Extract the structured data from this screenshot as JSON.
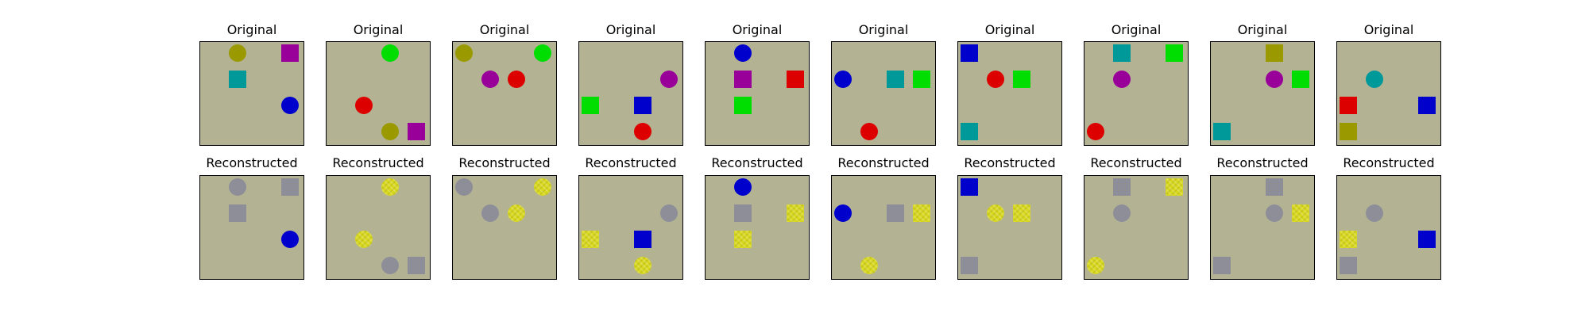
{
  "figure": {
    "row_titles": [
      "Original",
      "Reconstructed"
    ],
    "background": "#b3b394",
    "colors": {
      "olive": "#9a9a00",
      "magenta": "#990099",
      "teal": "#009999",
      "blue": "#0000cc",
      "green": "#00dd00",
      "red": "#dd0000",
      "gray": "#8e8e99",
      "yellow": "#d8d820"
    },
    "columns": [
      {
        "original": [
          {
            "shape": "circle",
            "color": "olive",
            "row": 0,
            "col": 1
          },
          {
            "shape": "square",
            "color": "magenta",
            "row": 0,
            "col": 3
          },
          {
            "shape": "square",
            "color": "teal",
            "row": 1,
            "col": 1
          },
          {
            "shape": "circle",
            "color": "blue",
            "row": 2,
            "col": 3
          }
        ],
        "reconstructed": [
          {
            "shape": "circle",
            "color": "gray",
            "row": 0,
            "col": 1
          },
          {
            "shape": "square",
            "color": "gray",
            "row": 0,
            "col": 3
          },
          {
            "shape": "square",
            "color": "gray",
            "row": 1,
            "col": 1
          },
          {
            "shape": "circle",
            "color": "blue",
            "row": 2,
            "col": 3
          }
        ]
      },
      {
        "original": [
          {
            "shape": "circle",
            "color": "green",
            "row": 0,
            "col": 2
          },
          {
            "shape": "circle",
            "color": "red",
            "row": 2,
            "col": 1
          },
          {
            "shape": "circle",
            "color": "olive",
            "row": 3,
            "col": 2
          },
          {
            "shape": "square",
            "color": "magenta",
            "row": 3,
            "col": 3
          }
        ],
        "reconstructed": [
          {
            "shape": "circle",
            "color": "yellow",
            "row": 0,
            "col": 2
          },
          {
            "shape": "circle",
            "color": "yellow",
            "row": 2,
            "col": 1
          },
          {
            "shape": "circle",
            "color": "gray",
            "row": 3,
            "col": 2
          },
          {
            "shape": "square",
            "color": "gray",
            "row": 3,
            "col": 3
          }
        ]
      },
      {
        "original": [
          {
            "shape": "circle",
            "color": "olive",
            "row": 0,
            "col": 0
          },
          {
            "shape": "circle",
            "color": "green",
            "row": 0,
            "col": 3
          },
          {
            "shape": "circle",
            "color": "magenta",
            "row": 1,
            "col": 1
          },
          {
            "shape": "circle",
            "color": "red",
            "row": 1,
            "col": 2
          }
        ],
        "reconstructed": [
          {
            "shape": "circle",
            "color": "gray",
            "row": 0,
            "col": 0
          },
          {
            "shape": "circle",
            "color": "yellow",
            "row": 0,
            "col": 3
          },
          {
            "shape": "circle",
            "color": "gray",
            "row": 1,
            "col": 1
          },
          {
            "shape": "circle",
            "color": "yellow",
            "row": 1,
            "col": 2
          }
        ]
      },
      {
        "original": [
          {
            "shape": "circle",
            "color": "magenta",
            "row": 1,
            "col": 3
          },
          {
            "shape": "square",
            "color": "green",
            "row": 2,
            "col": 0
          },
          {
            "shape": "square",
            "color": "blue",
            "row": 2,
            "col": 2
          },
          {
            "shape": "circle",
            "color": "red",
            "row": 3,
            "col": 2
          }
        ],
        "reconstructed": [
          {
            "shape": "circle",
            "color": "gray",
            "row": 1,
            "col": 3
          },
          {
            "shape": "square",
            "color": "yellow",
            "row": 2,
            "col": 0
          },
          {
            "shape": "square",
            "color": "blue",
            "row": 2,
            "col": 2
          },
          {
            "shape": "circle",
            "color": "yellow",
            "row": 3,
            "col": 2
          }
        ]
      },
      {
        "original": [
          {
            "shape": "circle",
            "color": "blue",
            "row": 0,
            "col": 1
          },
          {
            "shape": "square",
            "color": "magenta",
            "row": 1,
            "col": 1
          },
          {
            "shape": "square",
            "color": "red",
            "row": 1,
            "col": 3
          },
          {
            "shape": "square",
            "color": "green",
            "row": 2,
            "col": 1
          }
        ],
        "reconstructed": [
          {
            "shape": "circle",
            "color": "blue",
            "row": 0,
            "col": 1
          },
          {
            "shape": "square",
            "color": "gray",
            "row": 1,
            "col": 1
          },
          {
            "shape": "square",
            "color": "yellow",
            "row": 1,
            "col": 3
          },
          {
            "shape": "square",
            "color": "yellow",
            "row": 2,
            "col": 1
          }
        ]
      },
      {
        "original": [
          {
            "shape": "circle",
            "color": "blue",
            "row": 1,
            "col": 0
          },
          {
            "shape": "square",
            "color": "teal",
            "row": 1,
            "col": 2
          },
          {
            "shape": "square",
            "color": "green",
            "row": 1,
            "col": 3
          },
          {
            "shape": "circle",
            "color": "red",
            "row": 3,
            "col": 1
          }
        ],
        "reconstructed": [
          {
            "shape": "circle",
            "color": "blue",
            "row": 1,
            "col": 0
          },
          {
            "shape": "square",
            "color": "gray",
            "row": 1,
            "col": 2
          },
          {
            "shape": "square",
            "color": "yellow",
            "row": 1,
            "col": 3
          },
          {
            "shape": "circle",
            "color": "yellow",
            "row": 3,
            "col": 1
          }
        ]
      },
      {
        "original": [
          {
            "shape": "square",
            "color": "blue",
            "row": 0,
            "col": 0
          },
          {
            "shape": "circle",
            "color": "red",
            "row": 1,
            "col": 1
          },
          {
            "shape": "square",
            "color": "green",
            "row": 1,
            "col": 2
          },
          {
            "shape": "square",
            "color": "teal",
            "row": 3,
            "col": 0
          }
        ],
        "reconstructed": [
          {
            "shape": "square",
            "color": "blue",
            "row": 0,
            "col": 0
          },
          {
            "shape": "circle",
            "color": "yellow",
            "row": 1,
            "col": 1
          },
          {
            "shape": "square",
            "color": "yellow",
            "row": 1,
            "col": 2
          },
          {
            "shape": "square",
            "color": "gray",
            "row": 3,
            "col": 0
          }
        ]
      },
      {
        "original": [
          {
            "shape": "square",
            "color": "teal",
            "row": 0,
            "col": 1
          },
          {
            "shape": "square",
            "color": "green",
            "row": 0,
            "col": 3
          },
          {
            "shape": "circle",
            "color": "magenta",
            "row": 1,
            "col": 1
          },
          {
            "shape": "circle",
            "color": "red",
            "row": 3,
            "col": 0
          }
        ],
        "reconstructed": [
          {
            "shape": "square",
            "color": "gray",
            "row": 0,
            "col": 1
          },
          {
            "shape": "square",
            "color": "yellow",
            "row": 0,
            "col": 3
          },
          {
            "shape": "circle",
            "color": "gray",
            "row": 1,
            "col": 1
          },
          {
            "shape": "circle",
            "color": "yellow",
            "row": 3,
            "col": 0
          }
        ]
      },
      {
        "original": [
          {
            "shape": "square",
            "color": "olive",
            "row": 0,
            "col": 2
          },
          {
            "shape": "circle",
            "color": "magenta",
            "row": 1,
            "col": 2
          },
          {
            "shape": "square",
            "color": "green",
            "row": 1,
            "col": 3
          },
          {
            "shape": "square",
            "color": "teal",
            "row": 3,
            "col": 0
          }
        ],
        "reconstructed": [
          {
            "shape": "square",
            "color": "gray",
            "row": 0,
            "col": 2
          },
          {
            "shape": "circle",
            "color": "gray",
            "row": 1,
            "col": 2
          },
          {
            "shape": "square",
            "color": "yellow",
            "row": 1,
            "col": 3
          },
          {
            "shape": "square",
            "color": "gray",
            "row": 3,
            "col": 0
          }
        ]
      },
      {
        "original": [
          {
            "shape": "circle",
            "color": "teal",
            "row": 1,
            "col": 1
          },
          {
            "shape": "square",
            "color": "red",
            "row": 2,
            "col": 0
          },
          {
            "shape": "square",
            "color": "blue",
            "row": 2,
            "col": 3
          },
          {
            "shape": "square",
            "color": "olive",
            "row": 3,
            "col": 0
          }
        ],
        "reconstructed": [
          {
            "shape": "circle",
            "color": "gray",
            "row": 1,
            "col": 1
          },
          {
            "shape": "square",
            "color": "yellow",
            "row": 2,
            "col": 0
          },
          {
            "shape": "square",
            "color": "blue",
            "row": 2,
            "col": 3
          },
          {
            "shape": "square",
            "color": "gray",
            "row": 3,
            "col": 0
          }
        ]
      }
    ]
  }
}
